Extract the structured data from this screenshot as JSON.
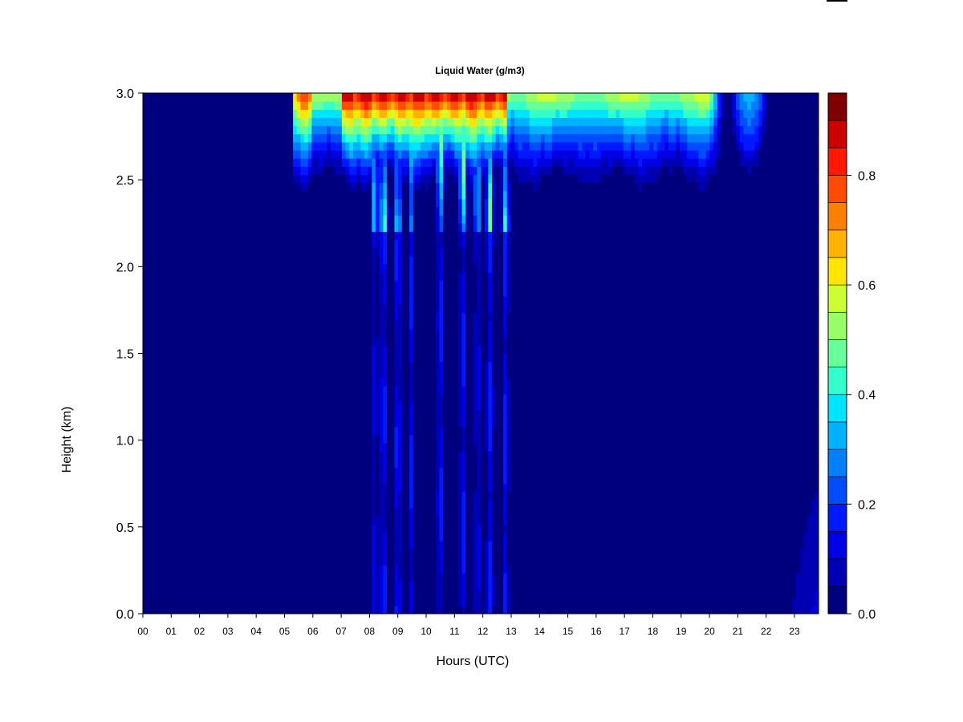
{
  "chart_data": {
    "type": "heatmap",
    "title": "Liquid Water (g/m3)",
    "xlabel": "Hours (UTC)",
    "ylabel": "Height (km)",
    "x_ticks": [
      "00",
      "01",
      "02",
      "03",
      "04",
      "05",
      "06",
      "07",
      "08",
      "09",
      "10",
      "11",
      "12",
      "13",
      "14",
      "15",
      "16",
      "17",
      "18",
      "19",
      "20",
      "21",
      "22",
      "23"
    ],
    "y_ticks": [
      "0.0",
      "0.5",
      "1.0",
      "1.5",
      "2.0",
      "2.5",
      "3.0"
    ],
    "xlim": [
      0,
      23.85
    ],
    "ylim": [
      0.0,
      3.0
    ],
    "colorbar": {
      "range": [
        0.0,
        0.95
      ],
      "ticks": [
        "0.0",
        "0.2",
        "0.4",
        "0.6",
        "0.8"
      ],
      "colors": [
        "#00007f",
        "#0000b2",
        "#0000e5",
        "#0019ff",
        "#004cff",
        "#007fff",
        "#00b2ff",
        "#00e5ff",
        "#33ffcc",
        "#66ff99",
        "#99ff66",
        "#ccff33",
        "#ffe500",
        "#ffb200",
        "#ff7f00",
        "#ff4c00",
        "#ff1900",
        "#cc0000",
        "#7f0000"
      ]
    },
    "features": [
      {
        "name": "main cloud layer",
        "hours": [
          5.3,
          20.5
        ],
        "base_km": 2.4,
        "peak_value": 0.95
      },
      {
        "name": "precipitation shafts",
        "hours": [
          8.2,
          8.5,
          9.0,
          9.45,
          10.5,
          11.3,
          11.8,
          12.25,
          12.8
        ],
        "peak_value": 0.25
      },
      {
        "name": "evening cloud",
        "hours": [
          20.7,
          22.1
        ],
        "base_km": 2.5,
        "peak_value": 0.35
      }
    ]
  }
}
